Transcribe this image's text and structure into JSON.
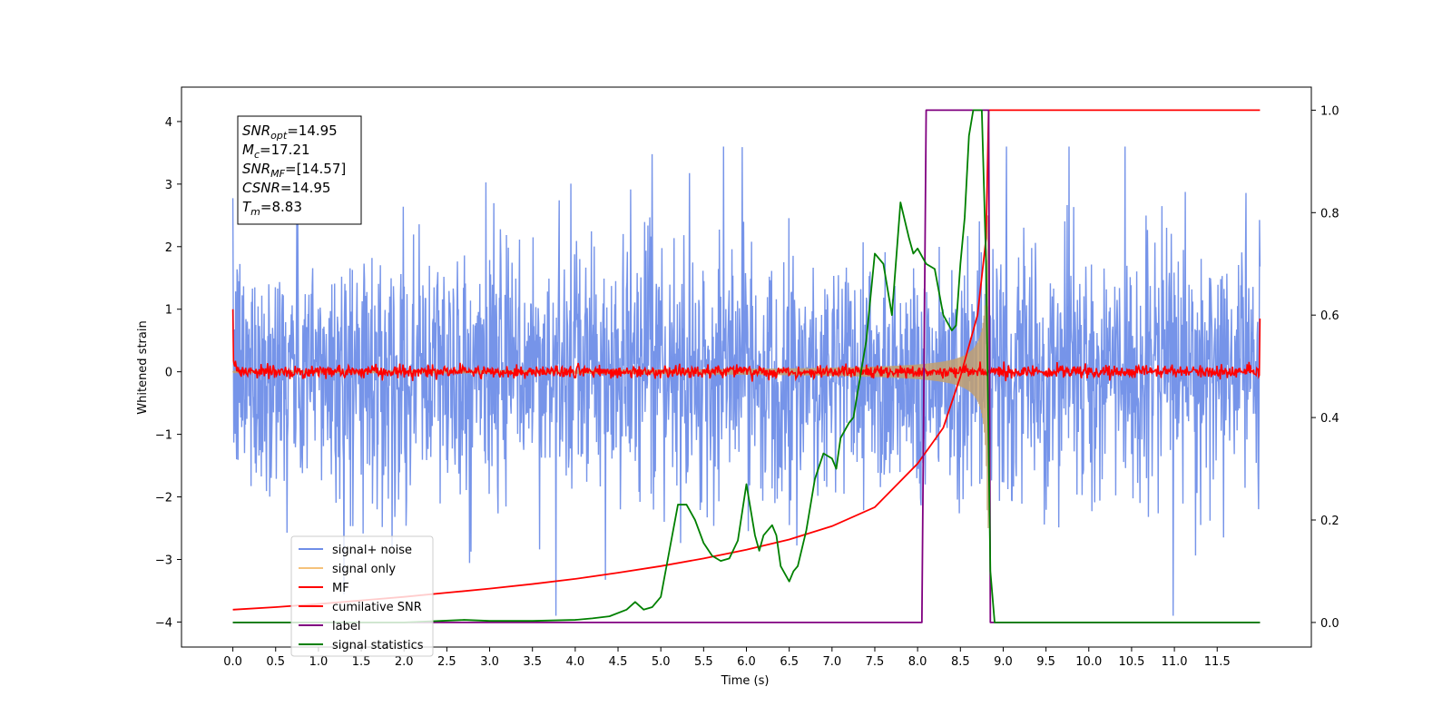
{
  "chart_data": {
    "type": "line",
    "xlabel": "Time (s)",
    "ylabel": "Whitened strain",
    "xlim": [
      -0.6,
      12.6
    ],
    "ylim": [
      -4.4,
      4.55
    ],
    "y2lim": [
      -0.048,
      1.045
    ],
    "x_ticks": [
      "0.0",
      "0.5",
      "1.0",
      "1.5",
      "2.0",
      "2.5",
      "3.0",
      "3.5",
      "4.0",
      "4.5",
      "5.0",
      "5.5",
      "6.0",
      "6.5",
      "7.0",
      "7.5",
      "8.0",
      "8.5",
      "9.0",
      "9.5",
      "10.0",
      "10.5",
      "11.0",
      "11.5"
    ],
    "y_ticks": [
      "4",
      "3",
      "2",
      "1",
      "0",
      "−1",
      "−2",
      "−3",
      "−4"
    ],
    "y2_ticks": [
      "1.0",
      "0.8",
      "0.6",
      "0.4",
      "0.2",
      "0.0"
    ],
    "annotation": {
      "lines": [
        {
          "base": "SNR",
          "sub": "opt",
          "value": "=14.95"
        },
        {
          "base": "M",
          "sub": "c",
          "value": "=17.21"
        },
        {
          "base": "SNR",
          "sub": "MF",
          "value": "=[14.57]"
        },
        {
          "base": "CSNR",
          "sub": "",
          "value": "=14.95"
        },
        {
          "base": "T",
          "sub": "m",
          "value": "=8.83"
        }
      ]
    },
    "legend": {
      "placement": "lower-left",
      "entries": [
        {
          "label": "signal+ noise",
          "color": "#6f8ee8"
        },
        {
          "label": "signal only",
          "color": "#f5c27a"
        },
        {
          "label": "MF",
          "color": "#ff0000"
        },
        {
          "label": "cumilative SNR",
          "color": "#ff0000"
        },
        {
          "label": "label",
          "color": "#800080"
        },
        {
          "label": "signal statistics",
          "color": "#008000"
        }
      ]
    },
    "series": [
      {
        "name": "signal+ noise",
        "axis": "left",
        "kind": "noise",
        "x_range": [
          0.0,
          12.0
        ],
        "amplitude": 1.0,
        "peak_min": -3.9,
        "peak_max": 3.6
      },
      {
        "name": "signal only",
        "axis": "left",
        "kind": "chirp",
        "x_range": [
          0.0,
          8.83
        ],
        "amplitude_at_end": 2.5
      },
      {
        "name": "MF",
        "axis": "left",
        "kind": "noise",
        "x_range": [
          0.0,
          12.0
        ],
        "amplitude": 0.05,
        "start_value": 1.0,
        "end_value": 0.85
      },
      {
        "name": "cumilative SNR",
        "axis": "right",
        "x": [
          0.0,
          0.5,
          1.0,
          1.5,
          2.0,
          2.5,
          3.0,
          3.5,
          4.0,
          4.5,
          5.0,
          5.5,
          6.0,
          6.5,
          7.0,
          7.5,
          8.0,
          8.3,
          8.5,
          8.7,
          8.8,
          8.83,
          12.0
        ],
        "y": [
          0.025,
          0.03,
          0.036,
          0.043,
          0.05,
          0.058,
          0.066,
          0.075,
          0.085,
          0.097,
          0.11,
          0.125,
          0.142,
          0.162,
          0.188,
          0.225,
          0.31,
          0.38,
          0.48,
          0.6,
          0.75,
          1.0,
          1.0
        ]
      },
      {
        "name": "label",
        "axis": "right",
        "x": [
          0.0,
          8.05,
          8.1,
          8.83,
          8.85,
          12.0
        ],
        "y": [
          0.0,
          0.0,
          1.0,
          1.0,
          0.0,
          0.0
        ]
      },
      {
        "name": "signal statistics",
        "axis": "right",
        "x": [
          0.0,
          2.0,
          2.7,
          3.0,
          3.5,
          4.0,
          4.2,
          4.4,
          4.6,
          4.7,
          4.8,
          4.9,
          5.0,
          5.1,
          5.2,
          5.3,
          5.4,
          5.5,
          5.6,
          5.7,
          5.8,
          5.9,
          6.0,
          6.1,
          6.15,
          6.2,
          6.3,
          6.35,
          6.4,
          6.5,
          6.55,
          6.6,
          6.7,
          6.8,
          6.9,
          7.0,
          7.05,
          7.1,
          7.2,
          7.25,
          7.3,
          7.4,
          7.5,
          7.6,
          7.7,
          7.8,
          7.9,
          7.95,
          8.0,
          8.1,
          8.2,
          8.3,
          8.4,
          8.45,
          8.5,
          8.55,
          8.6,
          8.65,
          8.7,
          8.75,
          8.8,
          8.85,
          8.9,
          12.0
        ],
        "y": [
          0.0,
          0.0,
          0.005,
          0.003,
          0.003,
          0.005,
          0.008,
          0.012,
          0.025,
          0.04,
          0.025,
          0.03,
          0.05,
          0.14,
          0.23,
          0.23,
          0.2,
          0.155,
          0.13,
          0.12,
          0.125,
          0.16,
          0.27,
          0.17,
          0.14,
          0.17,
          0.19,
          0.17,
          0.11,
          0.08,
          0.1,
          0.11,
          0.18,
          0.28,
          0.33,
          0.32,
          0.3,
          0.36,
          0.39,
          0.4,
          0.45,
          0.55,
          0.72,
          0.7,
          0.6,
          0.82,
          0.75,
          0.72,
          0.73,
          0.7,
          0.69,
          0.6,
          0.57,
          0.58,
          0.7,
          0.79,
          0.95,
          1.0,
          1.0,
          1.0,
          0.7,
          0.1,
          0.0,
          0.0
        ]
      }
    ]
  }
}
